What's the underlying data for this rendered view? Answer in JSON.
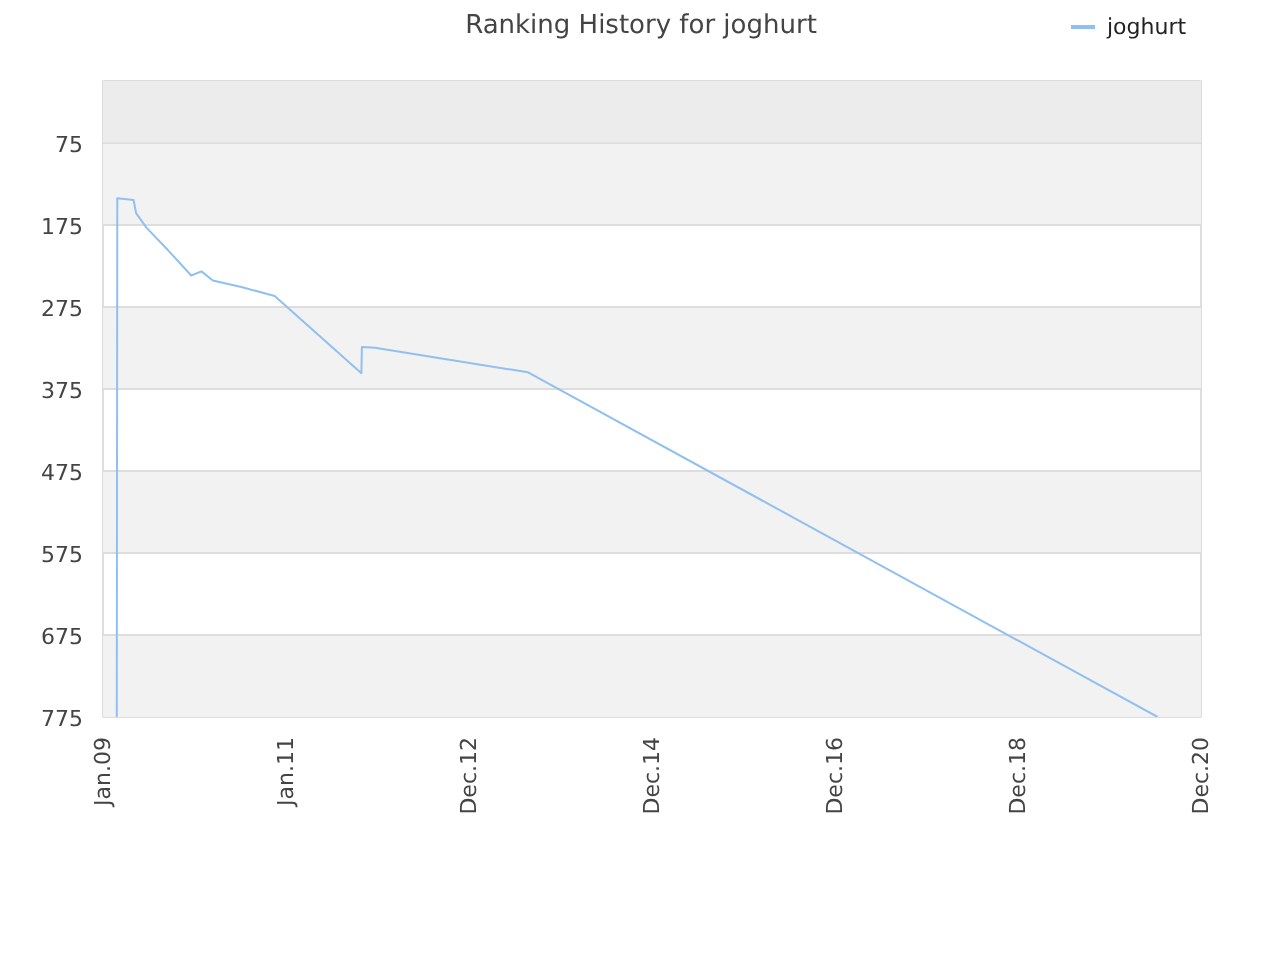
{
  "chart_data": {
    "type": "line",
    "title": "Ranking History for joghurt",
    "x": [
      "2009-02-25",
      "2009-02-27",
      "2009-05-03",
      "2009-05-13",
      "2009-06-24",
      "2009-09-17",
      "2009-12-19",
      "2010-01-29",
      "2010-03-15",
      "2010-07-07",
      "2010-11-17",
      "2011-10-29",
      "2011-10-31",
      "2011-12-22",
      "2013-08-24",
      "2020-07-10"
    ],
    "series": [
      {
        "name": "joghurt",
        "color": "#90c0f0",
        "values": [
          775,
          143,
          145,
          161,
          179,
          206,
          237,
          232,
          243,
          251,
          262,
          356,
          324,
          325,
          355,
          775
        ]
      }
    ],
    "xlim": [
      "2009-01-01",
      "2020-12-30"
    ],
    "xticks": [
      {
        "value": "2009-01-01",
        "label": "Jan.09"
      },
      {
        "value": "2011-01-01",
        "label": "Jan.11"
      },
      {
        "value": "2012-12-31",
        "label": "Dec.12"
      },
      {
        "value": "2014-12-31",
        "label": "Dec.14"
      },
      {
        "value": "2016-12-30",
        "label": "Dec.16"
      },
      {
        "value": "2018-12-30",
        "label": "Dec.18"
      },
      {
        "value": "2020-12-30",
        "label": "Dec.20"
      }
    ],
    "ylim": [
      775,
      0
    ],
    "yticks": [
      75,
      175,
      275,
      375,
      475,
      575,
      675,
      775
    ],
    "bands": [
      {
        "axis": "y",
        "from": 0,
        "to": 75,
        "color": "#ececec"
      }
    ],
    "grid": "y",
    "legend": "top right",
    "line_style": "solid"
  }
}
